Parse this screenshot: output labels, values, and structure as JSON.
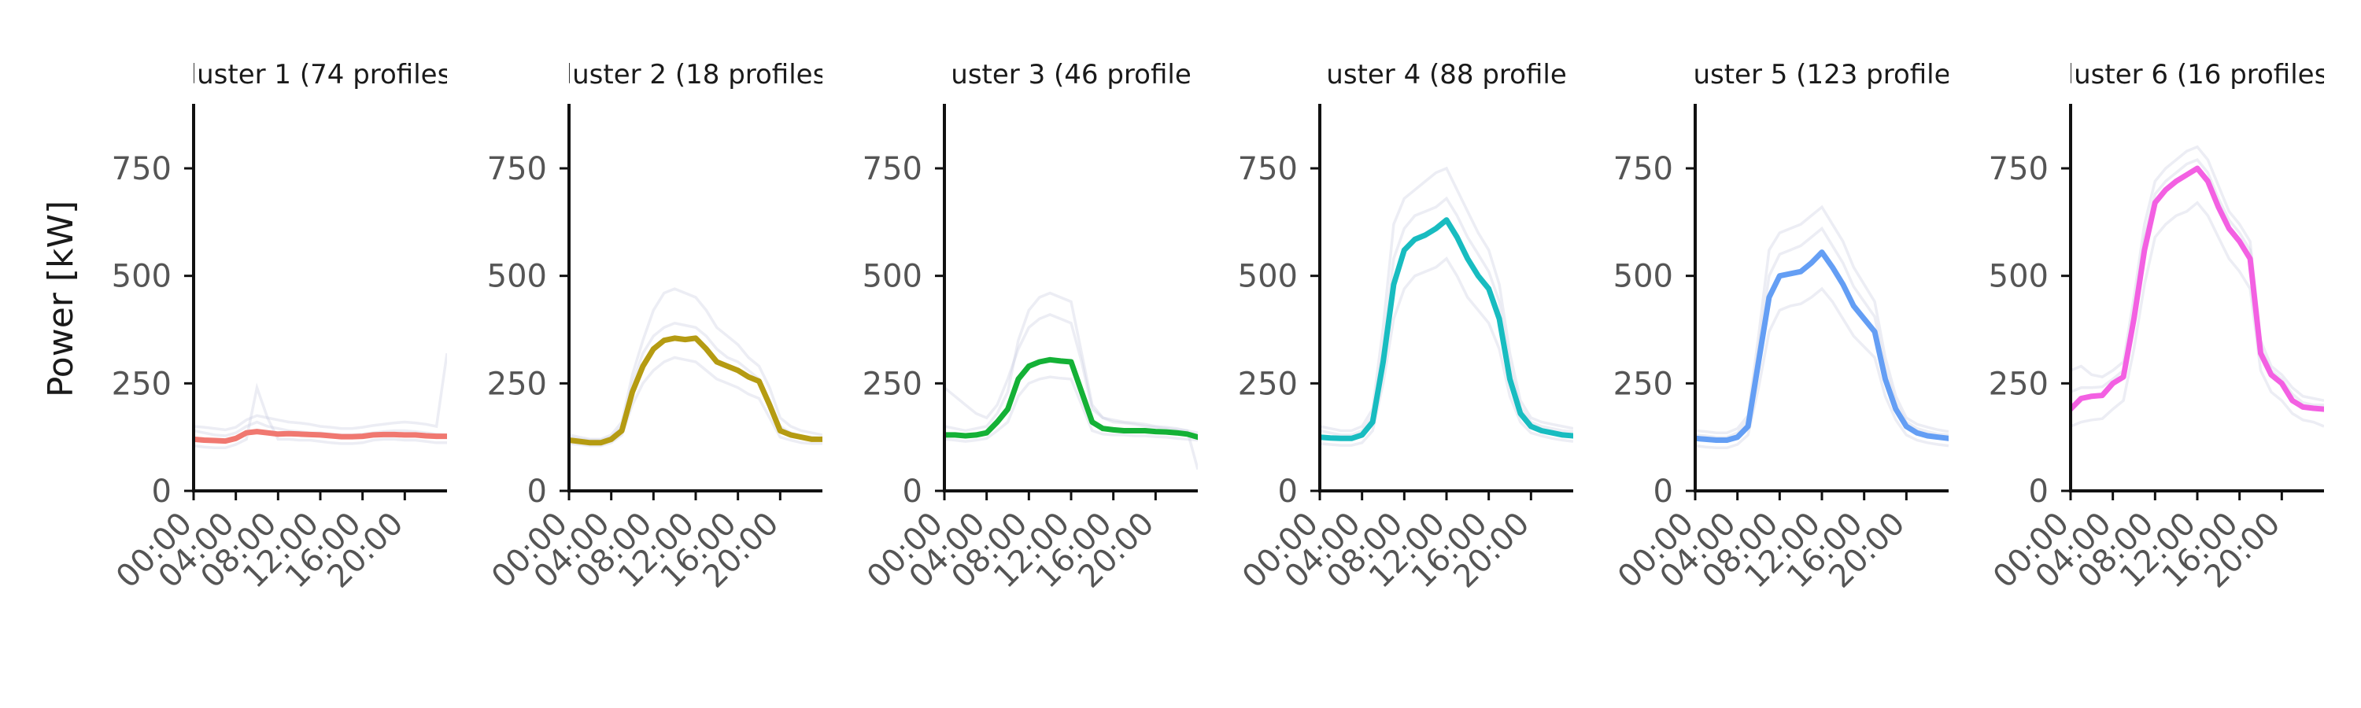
{
  "figure": {
    "ylabel": "Power [kW]"
  },
  "chart_data": {
    "type": "line",
    "ylabel": "Power [kW]",
    "ylim": [
      0,
      900
    ],
    "xlim": [
      0,
      24
    ],
    "yticks": [
      0,
      250,
      500,
      750
    ],
    "xtick_values": [
      0,
      4,
      8,
      12,
      16,
      20
    ],
    "xtick_labels": [
      "00:00",
      "04:00",
      "08:00",
      "12:00",
      "16:00",
      "20:00"
    ],
    "x": [
      0,
      1,
      2,
      3,
      4,
      5,
      6,
      7,
      8,
      9,
      10,
      11,
      12,
      13,
      14,
      15,
      16,
      17,
      18,
      19,
      20,
      21,
      22,
      23,
      24
    ],
    "panels": [
      {
        "title": "luster 1 (74 profiles",
        "color": "#f07870",
        "mean": [
          120,
          118,
          117,
          116,
          122,
          135,
          138,
          135,
          132,
          133,
          132,
          131,
          130,
          128,
          126,
          126,
          127,
          130,
          131,
          131,
          130,
          130,
          128,
          127,
          127
        ],
        "profiles": [
          [
            140,
            135,
            130,
            128,
            135,
            150,
            160,
            150,
            145,
            140,
            138,
            135,
            135,
            132,
            130,
            130,
            132,
            135,
            138,
            140,
            140,
            138,
            135,
            132,
            130
          ],
          [
            105,
            102,
            100,
            100,
            108,
            120,
            240,
            170,
            120,
            120,
            118,
            118,
            115,
            112,
            110,
            110,
            112,
            118,
            120,
            120,
            118,
            118,
            115,
            112,
            112
          ],
          [
            150,
            148,
            145,
            142,
            148,
            165,
            175,
            170,
            165,
            160,
            158,
            155,
            150,
            148,
            145,
            145,
            148,
            152,
            155,
            158,
            160,
            158,
            155,
            150,
            320
          ]
        ]
      },
      {
        "title": "luster 2 (18 profiles",
        "color": "#b59b12",
        "mean": [
          118,
          115,
          112,
          112,
          120,
          140,
          230,
          290,
          330,
          350,
          355,
          352,
          355,
          330,
          300,
          290,
          280,
          265,
          255,
          200,
          140,
          130,
          125,
          120,
          120
        ],
        "profiles": [
          [
            130,
            125,
            120,
            120,
            130,
            160,
            270,
            350,
            420,
            460,
            470,
            460,
            450,
            420,
            380,
            360,
            340,
            310,
            290,
            240,
            170,
            150,
            140,
            135,
            130
          ],
          [
            110,
            108,
            105,
            105,
            112,
            130,
            200,
            250,
            280,
            300,
            310,
            305,
            300,
            280,
            260,
            250,
            240,
            225,
            215,
            170,
            125,
            118,
            112,
            110,
            110
          ],
          [
            125,
            120,
            118,
            118,
            125,
            150,
            250,
            320,
            360,
            380,
            390,
            385,
            380,
            360,
            330,
            310,
            300,
            280,
            260,
            210,
            150,
            135,
            128,
            125,
            122
          ]
        ]
      },
      {
        "title": "uster 3 (46 profile",
        "color": "#14b136",
        "mean": [
          130,
          130,
          128,
          130,
          135,
          160,
          190,
          260,
          290,
          300,
          305,
          302,
          300,
          230,
          160,
          145,
          142,
          140,
          140,
          140,
          138,
          137,
          135,
          132,
          125
        ],
        "profiles": [
          [
            150,
            145,
            140,
            145,
            150,
            180,
            230,
            350,
            420,
            450,
            460,
            450,
            440,
            320,
            200,
            170,
            165,
            160,
            158,
            155,
            150,
            148,
            145,
            140,
            135
          ],
          [
            120,
            118,
            115,
            118,
            122,
            140,
            160,
            220,
            250,
            260,
            265,
            262,
            260,
            200,
            140,
            132,
            130,
            130,
            128,
            128,
            126,
            125,
            122,
            120,
            118
          ],
          [
            240,
            220,
            200,
            180,
            170,
            200,
            260,
            330,
            380,
            400,
            410,
            400,
            390,
            300,
            190,
            170,
            160,
            158,
            155,
            150,
            148,
            145,
            142,
            140,
            50
          ]
        ]
      },
      {
        "title": "uster 4 (88 profile",
        "color": "#18bcc0",
        "mean": [
          125,
          123,
          122,
          122,
          130,
          160,
          300,
          480,
          560,
          585,
          595,
          610,
          630,
          590,
          540,
          500,
          470,
          400,
          260,
          180,
          150,
          140,
          135,
          130,
          128
        ],
        "profiles": [
          [
            150,
            145,
            140,
            140,
            150,
            190,
            380,
            620,
            680,
            700,
            720,
            740,
            750,
            700,
            650,
            600,
            560,
            480,
            320,
            210,
            170,
            160,
            155,
            150,
            145
          ],
          [
            110,
            108,
            106,
            106,
            112,
            140,
            250,
            400,
            470,
            500,
            510,
            520,
            540,
            500,
            450,
            420,
            390,
            330,
            220,
            160,
            135,
            128,
            122,
            118,
            115
          ],
          [
            140,
            135,
            130,
            130,
            140,
            175,
            330,
            540,
            610,
            640,
            650,
            660,
            680,
            640,
            590,
            550,
            510,
            440,
            290,
            195,
            160,
            150,
            145,
            140,
            138
          ]
        ]
      },
      {
        "title": "uster 5 (123 profile",
        "color": "#649ef4",
        "mean": [
          122,
          120,
          118,
          118,
          125,
          150,
          300,
          450,
          500,
          505,
          510,
          530,
          555,
          520,
          480,
          430,
          400,
          370,
          260,
          190,
          150,
          135,
          128,
          125,
          122
        ],
        "profiles": [
          [
            140,
            138,
            135,
            135,
            145,
            175,
            360,
            560,
            600,
            610,
            620,
            640,
            660,
            620,
            580,
            520,
            480,
            440,
            310,
            220,
            170,
            155,
            148,
            142,
            138
          ],
          [
            105,
            102,
            100,
            100,
            108,
            130,
            240,
            370,
            420,
            430,
            435,
            450,
            470,
            440,
            400,
            360,
            335,
            310,
            220,
            165,
            130,
            118,
            112,
            108,
            105
          ],
          [
            130,
            128,
            125,
            125,
            135,
            165,
            330,
            500,
            550,
            560,
            570,
            590,
            610,
            570,
            530,
            475,
            440,
            405,
            285,
            205,
            160,
            145,
            138,
            132,
            130
          ]
        ]
      },
      {
        "title": "luster 6 (16 profiles",
        "color": "#f360e2",
        "mean": [
          190,
          215,
          220,
          222,
          250,
          265,
          400,
          560,
          670,
          700,
          720,
          735,
          750,
          720,
          660,
          610,
          580,
          540,
          320,
          270,
          250,
          210,
          195,
          192,
          190
        ],
        "profiles": [
          [
            280,
            290,
            270,
            265,
            280,
            300,
            450,
            620,
            720,
            750,
            770,
            790,
            800,
            770,
            710,
            650,
            620,
            580,
            350,
            290,
            270,
            240,
            220,
            215,
            210
          ],
          [
            150,
            160,
            165,
            168,
            190,
            210,
            330,
            480,
            590,
            620,
            640,
            650,
            670,
            640,
            590,
            540,
            510,
            470,
            280,
            230,
            210,
            180,
            165,
            160,
            150
          ],
          [
            230,
            240,
            240,
            242,
            260,
            280,
            420,
            590,
            690,
            720,
            740,
            760,
            770,
            740,
            680,
            630,
            600,
            560,
            330,
            280,
            260,
            225,
            205,
            200,
            200
          ]
        ]
      }
    ]
  }
}
